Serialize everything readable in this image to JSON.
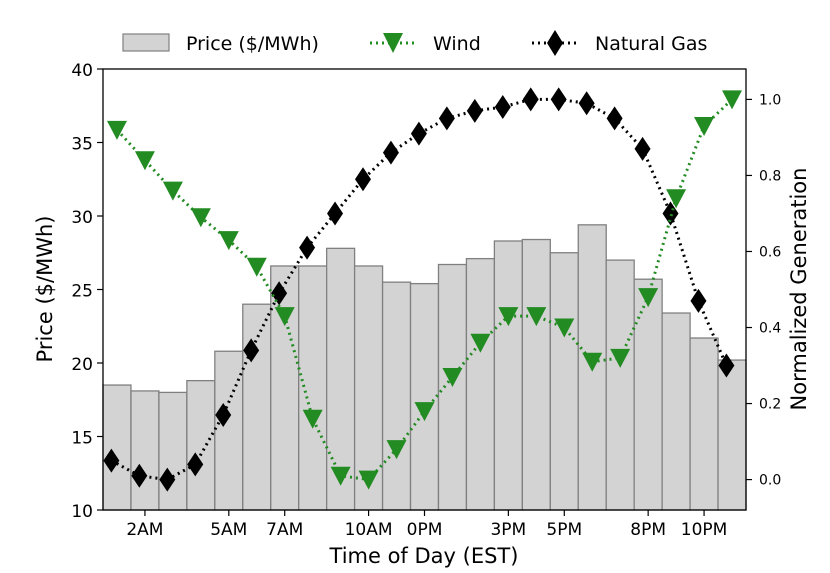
{
  "chart_data": {
    "type": "bar",
    "xlabel": "Time of Day (EST)",
    "ylabel_left": "Price ($/MWh)",
    "ylabel_right": "Normalized Generation",
    "left_ylim": [
      10,
      40
    ],
    "right_ylim": [
      -0.08,
      1.08
    ],
    "left_yticks": [
      "10",
      "15",
      "20",
      "25",
      "30",
      "35",
      "40"
    ],
    "right_yticks": [
      "0.0",
      "0.2",
      "0.4",
      "0.6",
      "0.8",
      "1.0"
    ],
    "xticks": [
      {
        "hour": 1,
        "label": "2AM"
      },
      {
        "hour": 4,
        "label": "5AM"
      },
      {
        "hour": 6,
        "label": "7AM"
      },
      {
        "hour": 9,
        "label": "10AM"
      },
      {
        "hour": 11,
        "label": "0PM"
      },
      {
        "hour": 14,
        "label": "3PM"
      },
      {
        "hour": 16,
        "label": "5PM"
      },
      {
        "hour": 19,
        "label": "8PM"
      },
      {
        "hour": 21,
        "label": "10PM"
      }
    ],
    "hours": [
      0,
      1,
      2,
      3,
      4,
      5,
      6,
      7,
      8,
      9,
      10,
      11,
      12,
      13,
      14,
      15,
      16,
      17,
      18,
      19,
      20,
      21,
      22
    ],
    "legend": [
      {
        "key": "price",
        "label": "Price ($/MWh)"
      },
      {
        "key": "wind",
        "label": "Wind"
      },
      {
        "key": "gas",
        "label": "Natural Gas"
      }
    ],
    "legend_position": "top",
    "series": [
      {
        "name": "Price ($/MWh)",
        "kind": "bar",
        "axis": "left",
        "color": "#d3d3d3",
        "edge": "#808080",
        "values": [
          18.5,
          18.1,
          18.0,
          18.8,
          20.8,
          24.0,
          26.6,
          26.6,
          27.8,
          26.6,
          25.5,
          25.4,
          26.7,
          27.1,
          28.3,
          28.4,
          27.5,
          29.4,
          27.0,
          25.7,
          23.4,
          21.7,
          20.2
        ]
      },
      {
        "name": "Wind",
        "kind": "line",
        "axis": "right",
        "color": "#228b22",
        "marker": "triangle-down",
        "x": [
          0,
          1,
          2,
          3,
          4,
          5,
          6,
          7,
          8,
          9,
          10,
          11,
          12,
          13,
          14,
          15,
          16,
          17,
          18,
          19,
          20,
          21,
          22
        ],
        "values": [
          0.92,
          0.84,
          0.76,
          0.69,
          0.63,
          0.56,
          0.43,
          0.16,
          0.01,
          0.0,
          0.08,
          0.18,
          0.27,
          0.36,
          0.43,
          0.43,
          0.4,
          0.31,
          0.32,
          0.48,
          0.74,
          0.93,
          1.0
        ]
      },
      {
        "name": "Natural Gas",
        "kind": "line",
        "axis": "right",
        "color": "#000000",
        "marker": "diamond",
        "x": [
          -0.2,
          0.8,
          1.8,
          2.8,
          3.8,
          4.8,
          5.8,
          6.8,
          7.8,
          8.8,
          9.8,
          10.8,
          11.8,
          12.8,
          13.8,
          14.8,
          15.8,
          16.8,
          17.8,
          18.8,
          19.8,
          20.8,
          21.8
        ],
        "values": [
          0.05,
          0.01,
          0.0,
          0.04,
          0.17,
          0.34,
          0.49,
          0.61,
          0.7,
          0.79,
          0.86,
          0.91,
          0.95,
          0.97,
          0.98,
          1.0,
          1.0,
          0.99,
          0.95,
          0.87,
          0.7,
          0.47,
          0.3
        ]
      }
    ],
    "grid": false
  }
}
